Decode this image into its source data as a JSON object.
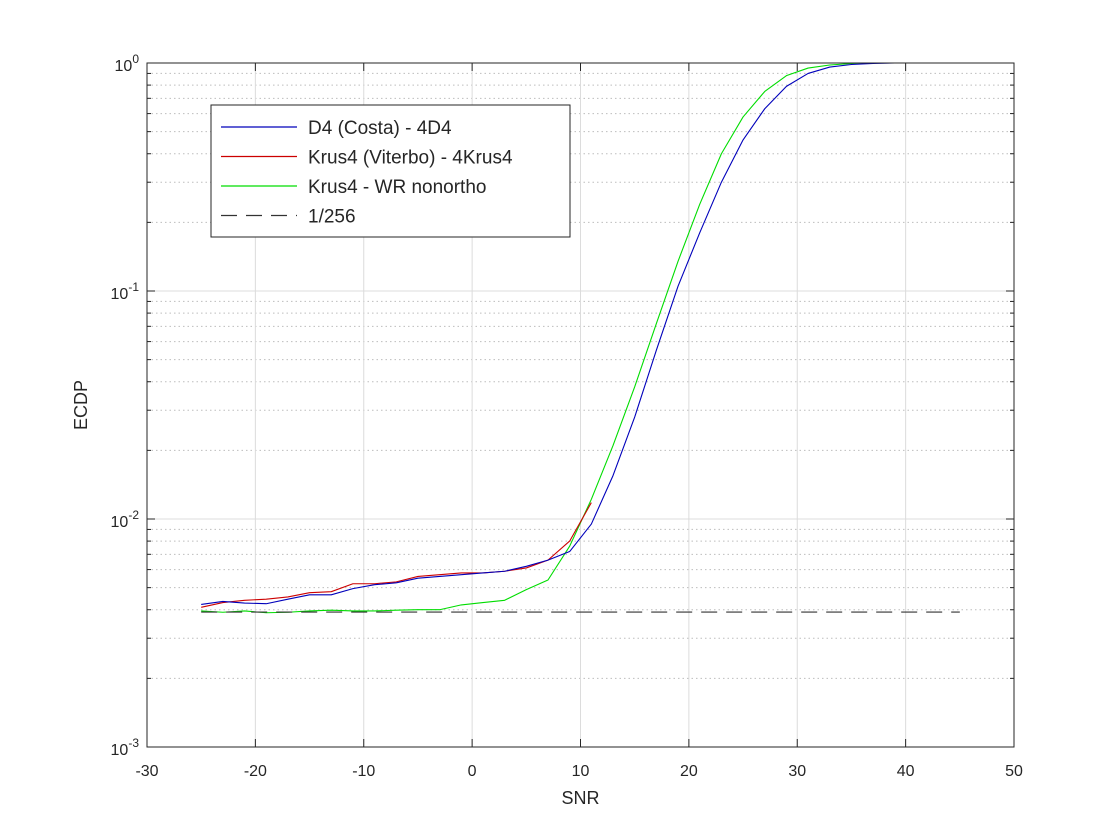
{
  "chart_data": {
    "type": "line",
    "title": "",
    "xlabel": "SNR",
    "ylabel": "ECDP",
    "xlim": [
      -30,
      50
    ],
    "ylim": [
      0.001,
      1
    ],
    "yscale": "log",
    "grid": true,
    "legend_placement": "top-left",
    "xticks": [
      {
        "value": -30,
        "label": "-30"
      },
      {
        "value": -20,
        "label": "-20"
      },
      {
        "value": -10,
        "label": "-10"
      },
      {
        "value": 0,
        "label": "0"
      },
      {
        "value": 10,
        "label": "10"
      },
      {
        "value": 20,
        "label": "20"
      },
      {
        "value": 30,
        "label": "30"
      },
      {
        "value": 40,
        "label": "40"
      },
      {
        "value": 50,
        "label": "50"
      }
    ],
    "yticks": [
      {
        "value": 0.001,
        "base": "10",
        "exp": "-3"
      },
      {
        "value": 0.01,
        "base": "10",
        "exp": "-2"
      },
      {
        "value": 0.1,
        "base": "10",
        "exp": "-1"
      },
      {
        "value": 1,
        "base": "10",
        "exp": "0"
      }
    ],
    "series": [
      {
        "name": "D4 (Costa) - 4D4",
        "color": "#0000bb",
        "style": "solid",
        "points": [
          [
            -25,
            0.00422
          ],
          [
            -23,
            0.00435
          ],
          [
            -21,
            0.00428
          ],
          [
            -19,
            0.00425
          ],
          [
            -17,
            0.00445
          ],
          [
            -15,
            0.00465
          ],
          [
            -13,
            0.00465
          ],
          [
            -11,
            0.00495
          ],
          [
            -9,
            0.00515
          ],
          [
            -7,
            0.00525
          ],
          [
            -5,
            0.0055
          ],
          [
            -3,
            0.0056
          ],
          [
            -1,
            0.0057
          ],
          [
            1,
            0.0058
          ],
          [
            3,
            0.0059
          ],
          [
            5,
            0.0062
          ],
          [
            7,
            0.0066
          ],
          [
            9,
            0.0072
          ],
          [
            11,
            0.0095
          ],
          [
            13,
            0.0155
          ],
          [
            15,
            0.028
          ],
          [
            17,
            0.055
          ],
          [
            19,
            0.105
          ],
          [
            21,
            0.18
          ],
          [
            23,
            0.3
          ],
          [
            25,
            0.46
          ],
          [
            27,
            0.63
          ],
          [
            29,
            0.79
          ],
          [
            31,
            0.9
          ],
          [
            33,
            0.96
          ],
          [
            35,
            0.985
          ],
          [
            37,
            0.995
          ],
          [
            39,
            1
          ],
          [
            41,
            1
          ],
          [
            43,
            1
          ],
          [
            45,
            1
          ],
          [
            47,
            1
          ]
        ]
      },
      {
        "name": "Krus4 (Viterbo) - 4Krus4",
        "color": "#cc0000",
        "style": "solid",
        "points": [
          [
            -25,
            0.0041
          ],
          [
            -23,
            0.0043
          ],
          [
            -21,
            0.0044
          ],
          [
            -19,
            0.00445
          ],
          [
            -17,
            0.00455
          ],
          [
            -15,
            0.00475
          ],
          [
            -13,
            0.0048
          ],
          [
            -11,
            0.0052
          ],
          [
            -9,
            0.0052
          ],
          [
            -7,
            0.0053
          ],
          [
            -5,
            0.0056
          ],
          [
            -3,
            0.0057
          ],
          [
            -1,
            0.0058
          ],
          [
            1,
            0.0058
          ],
          [
            3,
            0.0059
          ],
          [
            5,
            0.0061
          ],
          [
            7,
            0.0066
          ],
          [
            9,
            0.008
          ],
          [
            11,
            0.0118
          ]
        ]
      },
      {
        "name": "Krus4 - WR nonortho",
        "color": "#00dd00",
        "style": "solid",
        "points": [
          [
            -25,
            0.00395
          ],
          [
            -23,
            0.0039
          ],
          [
            -21,
            0.00395
          ],
          [
            -19,
            0.00388
          ],
          [
            -17,
            0.0039
          ],
          [
            -15,
            0.00395
          ],
          [
            -13,
            0.00398
          ],
          [
            -11,
            0.00395
          ],
          [
            -9,
            0.00395
          ],
          [
            -7,
            0.00398
          ],
          [
            -5,
            0.004
          ],
          [
            -3,
            0.004
          ],
          [
            -1,
            0.0042
          ],
          [
            1,
            0.0043
          ],
          [
            3,
            0.0044
          ],
          [
            5,
            0.0049
          ],
          [
            7,
            0.0054
          ],
          [
            9,
            0.0076
          ],
          [
            11,
            0.0122
          ],
          [
            13,
            0.021
          ],
          [
            15,
            0.038
          ],
          [
            17,
            0.072
          ],
          [
            19,
            0.135
          ],
          [
            21,
            0.24
          ],
          [
            23,
            0.4
          ],
          [
            25,
            0.58
          ],
          [
            27,
            0.75
          ],
          [
            29,
            0.88
          ],
          [
            31,
            0.95
          ],
          [
            33,
            0.98
          ],
          [
            35,
            0.995
          ],
          [
            37,
            1
          ],
          [
            39,
            1
          ],
          [
            41,
            1
          ],
          [
            43,
            1
          ],
          [
            45,
            1
          ]
        ]
      },
      {
        "name": "1/256",
        "color": "#333333",
        "style": "dashed",
        "points": [
          [
            -25,
            0.00390625
          ],
          [
            45,
            0.00390625
          ]
        ]
      }
    ]
  }
}
